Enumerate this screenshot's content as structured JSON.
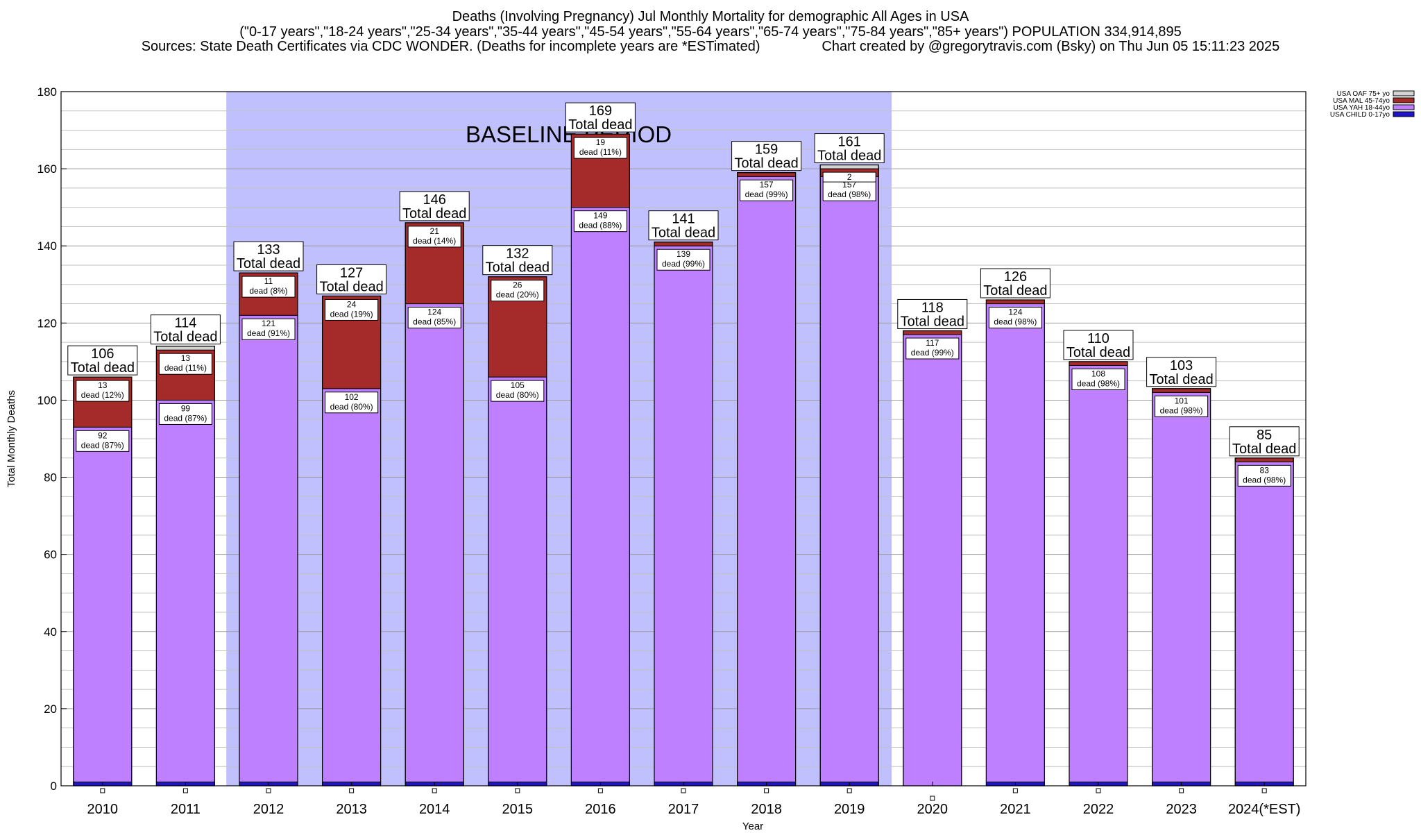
{
  "header": {
    "line1": "Deaths (Involving Pregnancy) Jul Monthly Mortality for demographic All Ages in USA",
    "line2": "(\"0-17 years\",\"18-24 years\",\"25-34 years\",\"35-44 years\",\"45-54 years\",\"55-64 years\",\"65-74 years\",\"75-84 years\",\"85+ years\") POPULATION 334,914,895",
    "line3": "Sources: State Death Certificates via CDC WONDER. (Deaths for incomplete years are *ESTimated)                Chart created by @gregorytravis.com (Bsky) on Thu Jun 05 15:11:23 2025"
  },
  "chart_data": {
    "type": "bar",
    "stacked": true,
    "xlabel": "Year",
    "ylabel": "Total Monthly Deaths",
    "ylim": [
      0,
      180
    ],
    "yticks": [
      0,
      20,
      40,
      60,
      80,
      100,
      120,
      140,
      160,
      180
    ],
    "grid": true,
    "legend_position": "top-right",
    "baseline_label": "BASELINE PERIOD",
    "baseline_range": [
      "2012",
      "2019"
    ],
    "total_label_suffix": "Total dead",
    "categories": [
      "2010",
      "2011",
      "2012",
      "2013",
      "2014",
      "2015",
      "2016",
      "2017",
      "2018",
      "2019",
      "2020",
      "2021",
      "2022",
      "2023",
      "2024(*EST)"
    ],
    "totals": [
      106,
      114,
      133,
      127,
      146,
      132,
      169,
      141,
      159,
      161,
      118,
      126,
      110,
      103,
      85
    ],
    "series": [
      {
        "name": "USA CHILD 0-17yo",
        "color": "#1f14c8",
        "values": [
          1,
          1,
          1,
          1,
          1,
          1,
          1,
          1,
          1,
          1,
          0,
          1,
          1,
          1,
          1
        ]
      },
      {
        "name": "USA YAH 18-44yo",
        "color": "#bf80ff",
        "values": [
          92,
          99,
          121,
          102,
          124,
          105,
          149,
          139,
          157,
          157,
          117,
          124,
          108,
          101,
          83
        ]
      },
      {
        "name": "USA MAL 45-74yo",
        "color": "#a52a2a",
        "values": [
          13,
          13,
          11,
          24,
          21,
          26,
          19,
          1,
          1,
          2,
          1,
          1,
          1,
          1,
          1
        ]
      },
      {
        "name": "USA OAF 75+ yo",
        "color": "#d3d3d3",
        "values": [
          0,
          1,
          0,
          0,
          0,
          0,
          0,
          0,
          0,
          1,
          0,
          0,
          0,
          0,
          0
        ]
      }
    ],
    "segment_labels": [
      [
        {
          "series": 1,
          "count": "92",
          "text": "dead (87%)"
        },
        {
          "series": 2,
          "count": "13",
          "text": "dead (12%)"
        }
      ],
      [
        {
          "series": 1,
          "count": "99",
          "text": "dead (87%)"
        },
        {
          "series": 2,
          "count": "13",
          "text": "dead (11%)"
        }
      ],
      [
        {
          "series": 1,
          "count": "121",
          "text": "dead (91%)"
        },
        {
          "series": 2,
          "count": "11",
          "text": "dead (8%)"
        }
      ],
      [
        {
          "series": 1,
          "count": "102",
          "text": "dead (80%)"
        },
        {
          "series": 2,
          "count": "24",
          "text": "dead (19%)"
        }
      ],
      [
        {
          "series": 1,
          "count": "124",
          "text": "dead (85%)"
        },
        {
          "series": 2,
          "count": "21",
          "text": "dead (14%)"
        }
      ],
      [
        {
          "series": 1,
          "count": "105",
          "text": "dead (80%)"
        },
        {
          "series": 2,
          "count": "26",
          "text": "dead (20%)"
        }
      ],
      [
        {
          "series": 1,
          "count": "149",
          "text": "dead (88%)"
        },
        {
          "series": 2,
          "count": "19",
          "text": "dead (11%)"
        }
      ],
      [
        {
          "series": 1,
          "count": "139",
          "text": "dead (99%)"
        }
      ],
      [
        {
          "series": 1,
          "count": "157",
          "text": "dead (99%)"
        }
      ],
      [
        {
          "series": 1,
          "count": "157",
          "text": "dead (98%)"
        },
        {
          "series": 2,
          "count": "2",
          "text": ""
        }
      ],
      [
        {
          "series": 1,
          "count": "117",
          "text": "dead (99%)"
        }
      ],
      [
        {
          "series": 1,
          "count": "124",
          "text": "dead (98%)"
        }
      ],
      [
        {
          "series": 1,
          "count": "108",
          "text": "dead (98%)"
        }
      ],
      [
        {
          "series": 1,
          "count": "101",
          "text": "dead (98%)"
        }
      ],
      [
        {
          "series": 1,
          "count": "83",
          "text": "dead (98%)"
        }
      ]
    ]
  }
}
